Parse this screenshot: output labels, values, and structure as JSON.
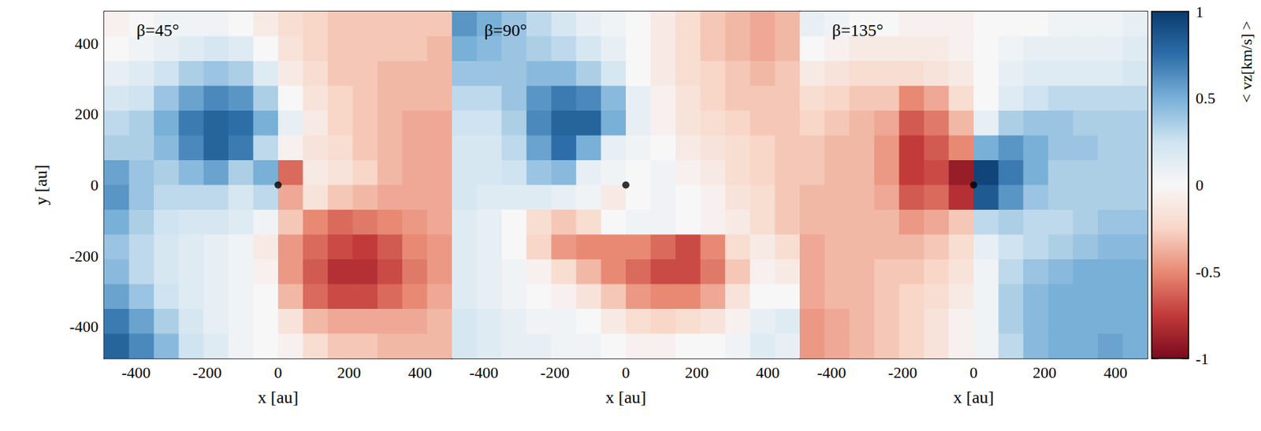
{
  "chart_data": {
    "type": "heatmap",
    "xlabel": "x [au]",
    "ylabel": "y [au]",
    "xlim": [
      -490,
      490
    ],
    "ylim": [
      -490,
      490
    ],
    "xticks": [
      -400,
      -200,
      0,
      200,
      400
    ],
    "yticks": [
      -400,
      -200,
      0,
      200,
      400
    ],
    "cell_x": [
      -455,
      -385,
      -315,
      -245,
      -175,
      -105,
      -35,
      35,
      105,
      175,
      245,
      315,
      385,
      455
    ],
    "cell_y": [
      455,
      385,
      315,
      245,
      175,
      105,
      35,
      -35,
      -105,
      -175,
      -245,
      -315,
      -385,
      -455
    ],
    "colorbar": {
      "label": "< vz[km/s] >",
      "range": [
        -1,
        1
      ],
      "ticks": [
        -1,
        -0.5,
        0,
        0.5,
        1
      ]
    },
    "point": {
      "x": 0,
      "y": 0,
      "color": "#000000"
    },
    "panels": [
      {
        "title": "β=45°",
        "cells": [
          [
            -0.05,
            0,
            0.05,
            0.05,
            0.05,
            0,
            -0.1,
            -0.2,
            -0.25,
            -0.3,
            -0.3,
            -0.3,
            -0.3,
            -0.3
          ],
          [
            0,
            0.05,
            0.1,
            0.15,
            0.2,
            0.15,
            0,
            -0.15,
            -0.25,
            -0.3,
            -0.3,
            -0.3,
            -0.3,
            -0.35
          ],
          [
            0.1,
            0.15,
            0.25,
            0.35,
            0.4,
            0.35,
            0.15,
            -0.1,
            -0.2,
            -0.3,
            -0.3,
            -0.35,
            -0.35,
            -0.35
          ],
          [
            0.2,
            0.25,
            0.4,
            0.55,
            0.65,
            0.6,
            0.35,
            0,
            -0.15,
            -0.25,
            -0.3,
            -0.35,
            -0.35,
            -0.35
          ],
          [
            0.3,
            0.35,
            0.5,
            0.7,
            0.8,
            0.75,
            0.5,
            0.1,
            -0.1,
            -0.25,
            -0.3,
            -0.35,
            -0.4,
            -0.4
          ],
          [
            0.35,
            0.35,
            0.45,
            0.65,
            0.8,
            0.7,
            0.3,
            -0.05,
            -0.15,
            -0.2,
            -0.3,
            -0.35,
            -0.4,
            -0.4
          ],
          [
            0.55,
            0.4,
            0.35,
            0.45,
            0.55,
            0.35,
            0.5,
            -0.6,
            -0.1,
            -0.15,
            -0.25,
            -0.35,
            -0.4,
            -0.4
          ],
          [
            0.6,
            0.4,
            0.3,
            0.3,
            0.3,
            0.2,
            0.3,
            -0.4,
            -0.15,
            -0.3,
            -0.35,
            -0.4,
            -0.4,
            -0.4
          ],
          [
            0.5,
            0.35,
            0.25,
            0.2,
            0.2,
            0.15,
            0.05,
            -0.3,
            -0.5,
            -0.6,
            -0.55,
            -0.5,
            -0.45,
            -0.4
          ],
          [
            0.4,
            0.3,
            0.2,
            0.15,
            0.1,
            0.05,
            -0.1,
            -0.45,
            -0.6,
            -0.7,
            -0.75,
            -0.65,
            -0.5,
            -0.45
          ],
          [
            0.45,
            0.3,
            0.2,
            0.15,
            0.1,
            0.05,
            -0.05,
            -0.45,
            -0.65,
            -0.8,
            -0.8,
            -0.7,
            -0.55,
            -0.45
          ],
          [
            0.55,
            0.4,
            0.25,
            0.15,
            0.1,
            0.05,
            0,
            -0.35,
            -0.6,
            -0.7,
            -0.7,
            -0.6,
            -0.5,
            -0.4
          ],
          [
            0.7,
            0.55,
            0.35,
            0.2,
            0.1,
            0.05,
            0,
            -0.15,
            -0.35,
            -0.4,
            -0.4,
            -0.4,
            -0.4,
            -0.35
          ],
          [
            0.8,
            0.65,
            0.45,
            0.25,
            0.15,
            0.05,
            0,
            -0.05,
            -0.2,
            -0.3,
            -0.3,
            -0.35,
            -0.35,
            -0.35
          ]
        ]
      },
      {
        "title": "β=90°",
        "tick_labels": "x",
        "cells": [
          [
            0.6,
            0.5,
            0.4,
            0.3,
            0.2,
            0.1,
            0.05,
            0,
            -0.1,
            -0.2,
            -0.3,
            -0.35,
            -0.4,
            -0.35
          ],
          [
            0.5,
            0.45,
            0.4,
            0.35,
            0.3,
            0.2,
            0.1,
            0,
            -0.1,
            -0.2,
            -0.3,
            -0.35,
            -0.4,
            -0.35
          ],
          [
            0.4,
            0.4,
            0.4,
            0.45,
            0.45,
            0.35,
            0.2,
            0,
            -0.1,
            -0.2,
            -0.25,
            -0.3,
            -0.35,
            -0.3
          ],
          [
            0.3,
            0.3,
            0.4,
            0.6,
            0.7,
            0.65,
            0.45,
            0.1,
            -0.05,
            -0.15,
            -0.25,
            -0.3,
            -0.3,
            -0.3
          ],
          [
            0.25,
            0.25,
            0.35,
            0.65,
            0.8,
            0.8,
            0.5,
            0.1,
            -0.05,
            -0.15,
            -0.2,
            -0.25,
            -0.3,
            -0.3
          ],
          [
            0.2,
            0.2,
            0.3,
            0.55,
            0.75,
            0.5,
            0.1,
            0.05,
            0,
            -0.1,
            -0.15,
            -0.2,
            -0.25,
            -0.3
          ],
          [
            0.2,
            0.2,
            0.25,
            0.4,
            0.45,
            0.1,
            0.05,
            0,
            0.05,
            -0.05,
            -0.1,
            -0.2,
            -0.25,
            -0.3
          ],
          [
            0.2,
            0.15,
            0.15,
            0.15,
            0.1,
            0.05,
            -0.1,
            0,
            0.05,
            0,
            -0.05,
            -0.15,
            -0.2,
            -0.3
          ],
          [
            0.15,
            0.1,
            0,
            -0.2,
            -0.3,
            -0.2,
            0,
            0.05,
            0.05,
            0,
            -0.05,
            -0.1,
            -0.2,
            -0.3
          ],
          [
            0.15,
            0.1,
            0,
            -0.25,
            -0.45,
            -0.5,
            -0.5,
            -0.5,
            -0.6,
            -0.7,
            -0.5,
            -0.2,
            -0.1,
            -0.2
          ],
          [
            0.15,
            0.1,
            0.05,
            -0.05,
            -0.2,
            -0.35,
            -0.5,
            -0.6,
            -0.7,
            -0.7,
            -0.55,
            -0.3,
            -0.05,
            -0.1
          ],
          [
            0.15,
            0.1,
            0.05,
            0,
            -0.05,
            -0.15,
            -0.3,
            -0.45,
            -0.5,
            -0.5,
            -0.4,
            -0.15,
            0,
            0
          ],
          [
            0.2,
            0.15,
            0.1,
            0.05,
            0.05,
            0,
            -0.1,
            -0.2,
            -0.25,
            -0.2,
            -0.15,
            -0.05,
            0.1,
            0.15
          ],
          [
            0.2,
            0.15,
            0.1,
            0.1,
            0.05,
            0.05,
            0,
            -0.05,
            -0.05,
            0,
            0,
            0.05,
            0.15,
            0.1
          ]
        ]
      },
      {
        "title": "β=135°",
        "tick_labels": "x",
        "cells": [
          [
            0.1,
            0.05,
            0,
            0,
            -0.05,
            -0.05,
            -0.05,
            0,
            0,
            0,
            0.05,
            0.05,
            0.05,
            0.1
          ],
          [
            0,
            -0.05,
            -0.1,
            -0.1,
            -0.1,
            -0.1,
            -0.05,
            0,
            0.05,
            0.1,
            0.1,
            0.1,
            0.1,
            0.15
          ],
          [
            -0.1,
            -0.15,
            -0.2,
            -0.2,
            -0.2,
            -0.15,
            -0.1,
            0,
            0.1,
            0.15,
            0.15,
            0.15,
            0.15,
            0.2
          ],
          [
            -0.2,
            -0.25,
            -0.3,
            -0.3,
            -0.5,
            -0.4,
            -0.2,
            0,
            0.15,
            0.25,
            0.3,
            0.3,
            0.3,
            0.3
          ],
          [
            -0.25,
            -0.3,
            -0.35,
            -0.4,
            -0.65,
            -0.55,
            -0.35,
            0.1,
            0.35,
            0.4,
            0.4,
            0.35,
            0.35,
            0.35
          ],
          [
            -0.3,
            -0.35,
            -0.35,
            -0.45,
            -0.75,
            -0.65,
            -0.5,
            0.5,
            0.6,
            0.5,
            0.4,
            0.4,
            0.35,
            0.35
          ],
          [
            -0.3,
            -0.35,
            -0.35,
            -0.45,
            -0.75,
            -0.7,
            -0.9,
            0.95,
            0.7,
            0.5,
            0.35,
            0.35,
            0.35,
            0.35
          ],
          [
            -0.35,
            -0.35,
            -0.35,
            -0.4,
            -0.65,
            -0.6,
            -0.8,
            0.85,
            0.6,
            0.4,
            0.35,
            0.35,
            0.35,
            0.35
          ],
          [
            -0.35,
            -0.35,
            -0.35,
            -0.35,
            -0.45,
            -0.4,
            -0.3,
            0.3,
            0.35,
            0.3,
            0.3,
            0.35,
            0.4,
            0.4
          ],
          [
            -0.4,
            -0.35,
            -0.35,
            -0.35,
            -0.35,
            -0.3,
            -0.2,
            0.1,
            0.25,
            0.3,
            0.35,
            0.4,
            0.45,
            0.45
          ],
          [
            -0.4,
            -0.35,
            -0.35,
            -0.3,
            -0.3,
            -0.25,
            -0.15,
            0.05,
            0.3,
            0.4,
            0.45,
            0.5,
            0.5,
            0.5
          ],
          [
            -0.4,
            -0.35,
            -0.35,
            -0.3,
            -0.25,
            -0.2,
            -0.1,
            0.05,
            0.35,
            0.45,
            0.5,
            0.5,
            0.5,
            0.5
          ],
          [
            -0.45,
            -0.4,
            -0.35,
            -0.3,
            -0.25,
            -0.15,
            -0.05,
            0.05,
            0.35,
            0.45,
            0.5,
            0.5,
            0.5,
            0.5
          ],
          [
            -0.45,
            -0.4,
            -0.35,
            -0.3,
            -0.25,
            -0.15,
            -0.05,
            0.05,
            0.3,
            0.45,
            0.5,
            0.5,
            0.55,
            0.5
          ]
        ]
      }
    ]
  }
}
